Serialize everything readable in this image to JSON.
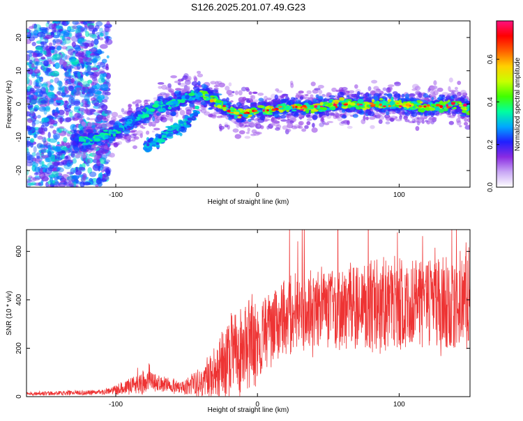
{
  "title": "S126.2025.201.07.49.G23",
  "chart_data": [
    {
      "type": "heatmap",
      "xlabel": "Height of straight line (km)",
      "ylabel": "Frequency (Hz)",
      "xlim": [
        -163,
        150
      ],
      "ylim": [
        -25,
        25
      ],
      "xticks": [
        -100,
        0,
        100
      ],
      "yticks": [
        -20,
        -10,
        0,
        10,
        20
      ],
      "colorbar": {
        "label": "Normalized spectral amplitude",
        "range": [
          0,
          0.78
        ],
        "ticks": [
          0,
          0.2,
          0.4,
          0.6
        ],
        "tick_labels": [
          "0.0",
          "0.2",
          "0.4",
          "0.6"
        ],
        "colors": [
          "#ffffff",
          "#c9a8f5",
          "#8a2be2",
          "#2020ff",
          "#00a8ff",
          "#00ffa0",
          "#40ff00",
          "#c8ff00",
          "#ffd000",
          "#ff6000",
          "#ff0000",
          "#ff1080"
        ]
      },
      "ridge": [
        {
          "x": -125,
          "y": -11
        },
        {
          "x": -110,
          "y": -10
        },
        {
          "x": -100,
          "y": -8
        },
        {
          "x": -90,
          "y": -6
        },
        {
          "x": -80,
          "y": -3
        },
        {
          "x": -70,
          "y": -1
        },
        {
          "x": -60,
          "y": 0
        },
        {
          "x": -50,
          "y": 2
        },
        {
          "x": -40,
          "y": 3
        },
        {
          "x": -30,
          "y": 1
        },
        {
          "x": -20,
          "y": -2
        },
        {
          "x": -10,
          "y": -3
        },
        {
          "x": 0,
          "y": -2
        },
        {
          "x": 20,
          "y": -1
        },
        {
          "x": 40,
          "y": -1
        },
        {
          "x": 60,
          "y": 0
        },
        {
          "x": 80,
          "y": 0
        },
        {
          "x": 100,
          "y": 0
        },
        {
          "x": 120,
          "y": -1
        },
        {
          "x": 140,
          "y": 0
        },
        {
          "x": 150,
          "y": -2
        }
      ],
      "lower_branch": [
        {
          "x": -80,
          "y": -13
        },
        {
          "x": -70,
          "y": -11
        },
        {
          "x": -60,
          "y": -8
        },
        {
          "x": -50,
          "y": -6
        },
        {
          "x": -42,
          "y": -2
        }
      ]
    },
    {
      "type": "line",
      "xlabel": "Height of straight line (km)",
      "ylabel": "SNR (10 * v/v)",
      "xlim": [
        -163,
        150
      ],
      "ylim": [
        0,
        690
      ],
      "xticks": [
        -100,
        0,
        100
      ],
      "yticks": [
        0,
        200,
        400,
        600
      ],
      "series": [
        {
          "color": "#ee3333",
          "envelope": [
            {
              "x": -163,
              "mean": 12,
              "amp": 8
            },
            {
              "x": -110,
              "mean": 18,
              "amp": 10
            },
            {
              "x": -95,
              "mean": 35,
              "amp": 25
            },
            {
              "x": -80,
              "mean": 60,
              "amp": 50
            },
            {
              "x": -70,
              "mean": 55,
              "amp": 35
            },
            {
              "x": -55,
              "mean": 40,
              "amp": 25
            },
            {
              "x": -40,
              "mean": 55,
              "amp": 60
            },
            {
              "x": -30,
              "mean": 100,
              "amp": 110
            },
            {
              "x": -20,
              "mean": 150,
              "amp": 170
            },
            {
              "x": -10,
              "mean": 200,
              "amp": 200
            },
            {
              "x": 0,
              "mean": 240,
              "amp": 160
            },
            {
              "x": 10,
              "mean": 280,
              "amp": 150
            },
            {
              "x": 20,
              "mean": 330,
              "amp": 150
            },
            {
              "x": 40,
              "mean": 360,
              "amp": 170
            },
            {
              "x": 60,
              "mean": 370,
              "amp": 170
            },
            {
              "x": 80,
              "mean": 380,
              "amp": 190
            },
            {
              "x": 100,
              "mean": 380,
              "amp": 190
            },
            {
              "x": 120,
              "mean": 380,
              "amp": 180
            },
            {
              "x": 150,
              "mean": 390,
              "amp": 200
            }
          ]
        }
      ]
    }
  ]
}
